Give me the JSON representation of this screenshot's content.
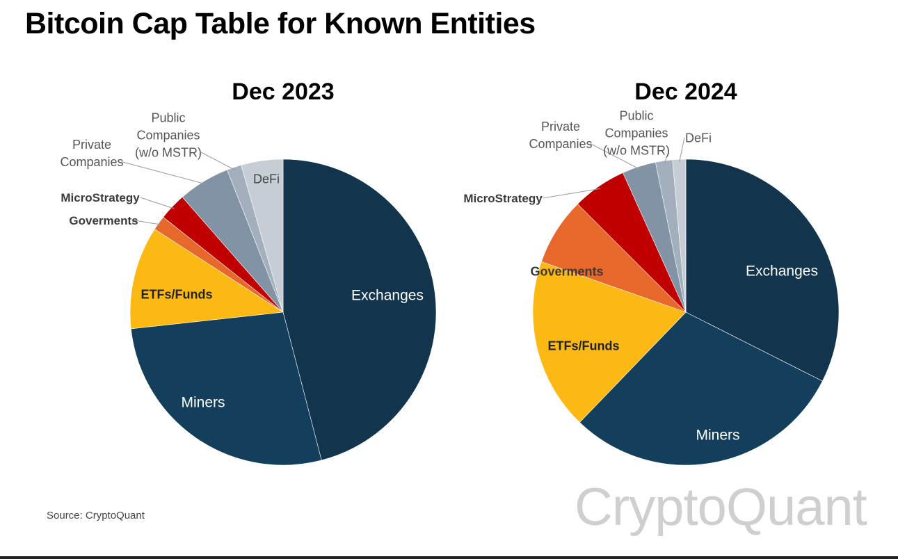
{
  "title": "Bitcoin Cap Table for Known Entities",
  "source": "Source: CryptoQuant",
  "brand": "CryptoQuant",
  "colors": {
    "Exchanges": "#12344d",
    "Miners": "#133f5c",
    "ETFs/Funds": "#fdb913",
    "Goverments": "#e8672b",
    "MicroStrategy": "#c00000",
    "Private Companies": "#8293a5",
    "Public Companies (w/o MSTR)": "#a3afbc",
    "DeFi": "#c6cdd5"
  },
  "chart_data": [
    {
      "type": "pie",
      "title": "Dec 2023",
      "labels": [
        "Exchanges",
        "Miners",
        "ETFs/Funds",
        "Goverments",
        "MicroStrategy",
        "Private Companies",
        "Public Companies (w/o MSTR)",
        "DeFi"
      ],
      "label_text": [
        "Exchanges",
        "Miners",
        "ETFs/Funds",
        "Goverments",
        "MicroStrategy",
        "Private\nCompanies",
        "Public\nCompanies\n(w/o MSTR)",
        "DeFi"
      ],
      "values": [
        47.8,
        28.4,
        11.3,
        1.6,
        3.0,
        5.7,
        1.6,
        4.6
      ]
    },
    {
      "type": "pie",
      "title": "Dec 2024",
      "labels": [
        "Exchanges",
        "Miners",
        "ETFs/Funds",
        "Goverments",
        "MicroStrategy",
        "Private Companies",
        "Public Companies (w/o MSTR)",
        "DeFi"
      ],
      "label_text": [
        "Exchanges",
        "Miners",
        "ETFs/Funds",
        "Goverments",
        "MicroStrategy",
        "Private\nCompanies",
        "Public\nCompanies\n(w/o MSTR)",
        "DeFi"
      ],
      "values": [
        32.7,
        30.0,
        18.3,
        7.2,
        5.8,
        3.6,
        1.8,
        1.4
      ]
    }
  ]
}
